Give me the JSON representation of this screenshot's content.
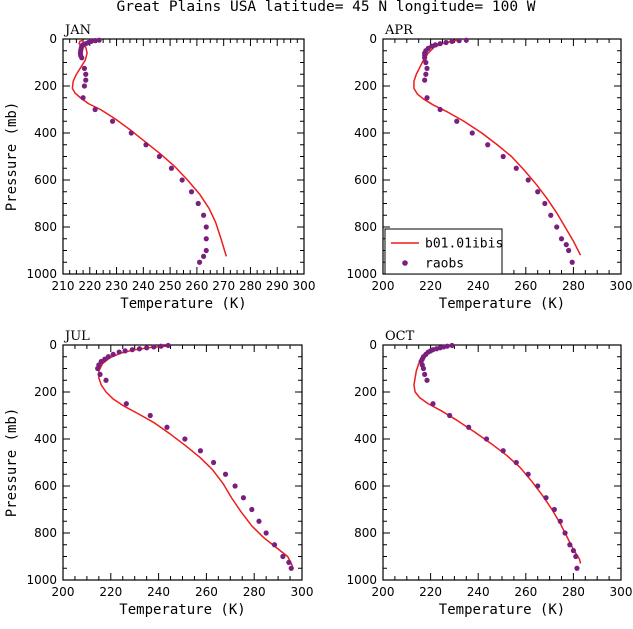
{
  "title": "Great Plains USA  latitude= 45 N longitude= 100 W",
  "legend": {
    "model_label": "b01.01ibis",
    "obs_label": "raobs"
  },
  "colors": {
    "model": "#ee1c1c",
    "obs": "#7b1f7e",
    "axis": "#000000"
  },
  "chart_data": [
    {
      "type": "line",
      "panel": "JAN",
      "title": "JAN",
      "xlabel": "Temperature (K)",
      "ylabel": "Pressure (mb)",
      "xlim": [
        210,
        300
      ],
      "ylim": [
        1000,
        0
      ],
      "y_reversed": true,
      "xticks": [
        210,
        220,
        230,
        240,
        250,
        260,
        270,
        280,
        290,
        300
      ],
      "yticks": [
        0,
        200,
        400,
        600,
        800,
        1000
      ],
      "series": [
        {
          "name": "b01.01ibis",
          "kind": "line",
          "x": [
            217.5,
            216.3,
            216.0,
            218.5,
            219.0,
            218.3,
            216.7,
            215.0,
            213.8,
            213.5,
            214.5,
            216.5,
            219.5,
            224.0,
            229.5,
            235.5,
            241.0,
            246.5,
            251.5,
            256.5,
            261.0,
            264.5,
            267.0,
            269.0,
            271.0
          ],
          "y": [
            5,
            10,
            20,
            35,
            60,
            90,
            120,
            150,
            180,
            210,
            230,
            250,
            275,
            300,
            340,
            390,
            440,
            490,
            540,
            600,
            660,
            720,
            780,
            850,
            925
          ]
        },
        {
          "name": "raobs",
          "kind": "scatter",
          "x": [
            223.5,
            222.0,
            220.5,
            219.5,
            218.5,
            217.5,
            217.0,
            216.8,
            216.6,
            216.5,
            216.6,
            217.0,
            218.0,
            218.5,
            218.5,
            218.0,
            217.5,
            222.0,
            228.5,
            235.5,
            241.0,
            246.0,
            250.5,
            254.5,
            258.0,
            260.5,
            262.5,
            263.5,
            263.5,
            263.5,
            262.5,
            261.0
          ],
          "y": [
            5,
            7,
            10,
            15,
            20,
            25,
            30,
            40,
            50,
            60,
            70,
            80,
            125,
            150,
            175,
            200,
            250,
            300,
            350,
            400,
            450,
            500,
            550,
            600,
            650,
            700,
            750,
            800,
            850,
            900,
            925,
            950
          ]
        }
      ]
    },
    {
      "type": "line",
      "panel": "APR",
      "title": "APR",
      "xlabel": "Temperature (K)",
      "ylabel": "",
      "xlim": [
        200,
        300
      ],
      "ylim": [
        1000,
        0
      ],
      "y_reversed": true,
      "xticks": [
        200,
        220,
        240,
        260,
        280,
        300
      ],
      "yticks": [
        0,
        200,
        400,
        600,
        800,
        1000
      ],
      "series": [
        {
          "name": "b01.01ibis",
          "kind": "line",
          "x": [
            232.0,
            228.5,
            225.0,
            221.5,
            219.0,
            217.0,
            215.5,
            214.0,
            213.0,
            213.0,
            214.5,
            217.0,
            221.0,
            227.0,
            234.0,
            241.5,
            248.0,
            254.0,
            259.5,
            264.5,
            269.0,
            273.0,
            276.5,
            280.0,
            283.0
          ],
          "y": [
            5,
            10,
            20,
            35,
            60,
            90,
            120,
            150,
            180,
            210,
            235,
            255,
            280,
            310,
            350,
            400,
            450,
            500,
            560,
            620,
            680,
            740,
            800,
            860,
            920
          ]
        },
        {
          "name": "raobs",
          "kind": "scatter",
          "x": [
            235.0,
            232.0,
            229.0,
            226.5,
            224.0,
            222.0,
            220.5,
            219.0,
            218.0,
            217.5,
            217.5,
            217.5,
            218.0,
            218.5,
            218.0,
            217.5,
            218.5,
            224.0,
            231.0,
            237.5,
            244.0,
            250.5,
            256.0,
            261.0,
            265.0,
            268.0,
            270.5,
            273.0,
            275.0,
            277.0,
            278.0,
            279.5
          ],
          "y": [
            5,
            7,
            10,
            15,
            20,
            25,
            30,
            40,
            50,
            60,
            70,
            80,
            100,
            125,
            150,
            175,
            250,
            300,
            350,
            400,
            450,
            500,
            550,
            600,
            650,
            700,
            750,
            800,
            850,
            875,
            900,
            950
          ]
        }
      ]
    },
    {
      "type": "line",
      "panel": "JUL",
      "title": "JUL",
      "xlabel": "Temperature (K)",
      "ylabel": "Pressure (mb)",
      "xlim": [
        200,
        300
      ],
      "ylim": [
        1000,
        0
      ],
      "y_reversed": true,
      "xticks": [
        200,
        220,
        240,
        260,
        280,
        300
      ],
      "yticks": [
        0,
        200,
        400,
        600,
        800,
        1000
      ],
      "series": [
        {
          "name": "b01.01ibis",
          "kind": "line",
          "x": [
            243.5,
            237.0,
            230.0,
            224.0,
            219.5,
            216.5,
            215.0,
            215.0,
            216.0,
            218.0,
            221.0,
            225.5,
            231.0,
            238.0,
            245.0,
            251.5,
            257.5,
            262.5,
            267.0,
            270.5,
            274.5,
            279.0,
            284.0,
            289.0,
            294.0,
            296.0
          ],
          "y": [
            5,
            10,
            20,
            35,
            55,
            80,
            110,
            140,
            170,
            200,
            230,
            260,
            290,
            330,
            380,
            430,
            480,
            530,
            590,
            650,
            710,
            770,
            820,
            860,
            900,
            940
          ]
        },
        {
          "name": "raobs",
          "kind": "scatter",
          "x": [
            244.0,
            241.0,
            238.0,
            235.0,
            232.0,
            229.0,
            226.0,
            223.5,
            221.0,
            219.0,
            217.5,
            216.0,
            215.0,
            214.5,
            215.5,
            218.0,
            226.5,
            236.5,
            243.5,
            251.0,
            257.5,
            263.0,
            268.0,
            272.0,
            275.5,
            279.0,
            282.0,
            285.0,
            288.5,
            292.0,
            294.5,
            295.5
          ],
          "y": [
            2,
            5,
            8,
            12,
            16,
            20,
            25,
            30,
            40,
            50,
            60,
            70,
            85,
            100,
            125,
            150,
            250,
            300,
            350,
            400,
            450,
            500,
            550,
            600,
            650,
            700,
            750,
            800,
            850,
            900,
            925,
            950
          ]
        }
      ]
    },
    {
      "type": "line",
      "panel": "OCT",
      "title": "OCT",
      "xlabel": "Temperature (K)",
      "ylabel": "",
      "xlim": [
        200,
        300
      ],
      "ylim": [
        1000,
        0
      ],
      "y_reversed": true,
      "xticks": [
        200,
        220,
        240,
        260,
        280,
        300
      ],
      "yticks": [
        0,
        200,
        400,
        600,
        800,
        1000
      ],
      "series": [
        {
          "name": "b01.01ibis",
          "kind": "line",
          "x": [
            227.0,
            224.0,
            221.0,
            218.5,
            216.5,
            215.0,
            214.0,
            213.5,
            213.0,
            213.5,
            215.5,
            219.0,
            224.5,
            231.0,
            238.5,
            245.5,
            252.0,
            257.5,
            262.5,
            267.0,
            271.0,
            274.5,
            277.5,
            280.0,
            282.5,
            283.0
          ],
          "y": [
            5,
            10,
            20,
            35,
            55,
            80,
            110,
            140,
            170,
            200,
            225,
            250,
            280,
            320,
            370,
            420,
            470,
            520,
            580,
            640,
            700,
            760,
            820,
            870,
            910,
            930
          ]
        },
        {
          "name": "raobs",
          "kind": "scatter",
          "x": [
            229.0,
            227.0,
            225.5,
            224.0,
            222.5,
            221.0,
            220.0,
            219.0,
            218.0,
            217.0,
            216.5,
            216.0,
            216.5,
            217.0,
            217.5,
            218.5,
            221.0,
            228.0,
            236.0,
            243.5,
            250.5,
            256.0,
            261.0,
            265.0,
            268.5,
            272.0,
            274.5,
            276.5,
            278.5,
            280.0,
            281.0,
            281.5
          ],
          "y": [
            2,
            5,
            8,
            12,
            16,
            20,
            25,
            30,
            40,
            50,
            60,
            70,
            85,
            100,
            125,
            150,
            250,
            300,
            350,
            400,
            450,
            500,
            550,
            600,
            650,
            700,
            750,
            800,
            850,
            875,
            900,
            950
          ]
        }
      ]
    }
  ]
}
